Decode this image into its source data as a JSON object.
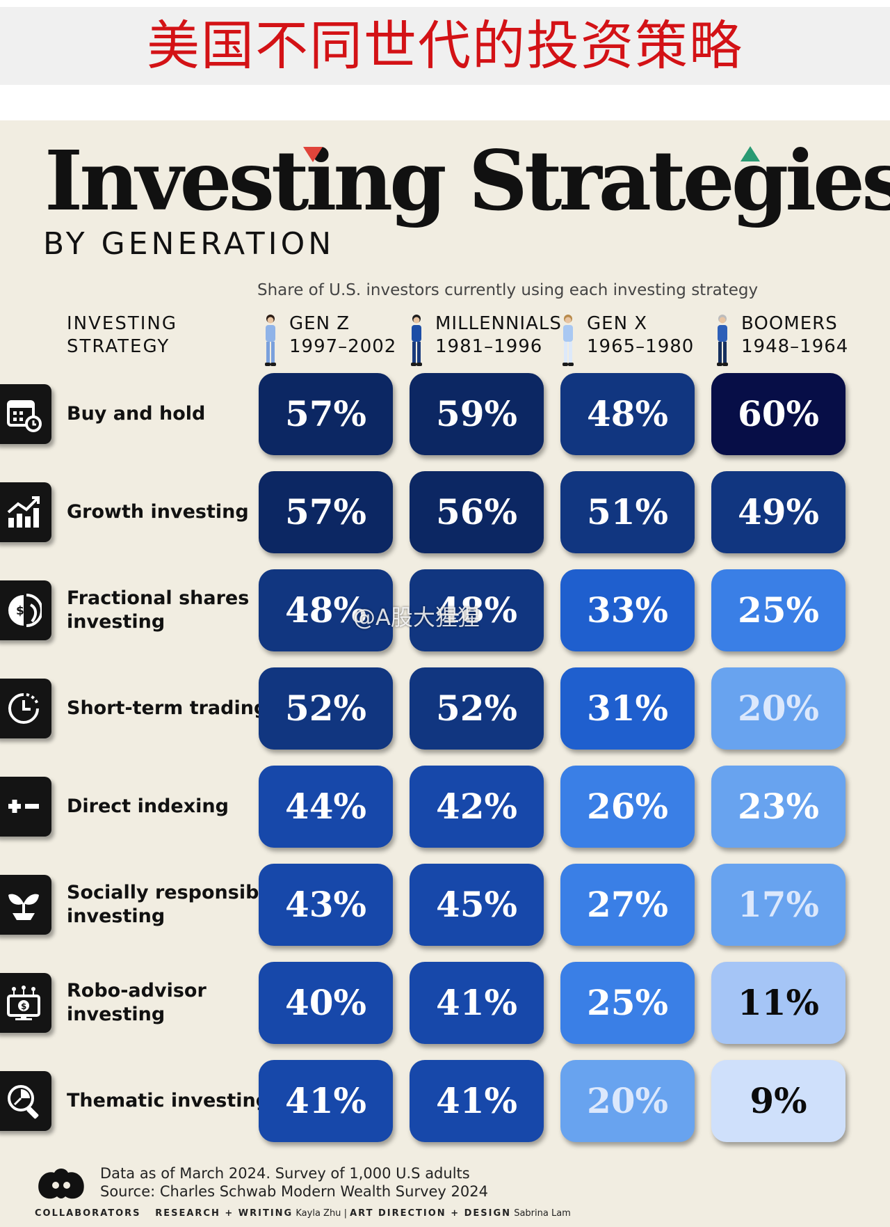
{
  "banner": {
    "title": "美国不同世代的投资策略"
  },
  "header": {
    "title": "Investing Strategies",
    "subtitle": "BY GENERATION"
  },
  "chart_data": {
    "type": "table",
    "title": "Investing Strategies",
    "subtitle": "BY GENERATION",
    "description": "Share of U.S. investors currently using each investing strategy",
    "strategy_header_line1": "INVESTING",
    "strategy_header_line2": "STRATEGY",
    "generations": [
      {
        "name": "GEN Z",
        "years": "1997–2002"
      },
      {
        "name": "MILLENNIALS",
        "years": "1981–1996"
      },
      {
        "name": "GEN X",
        "years": "1965–1980"
      },
      {
        "name": "BOOMERS",
        "years": "1948–1964"
      }
    ],
    "strategies": [
      {
        "label_lines": [
          "Buy and hold"
        ],
        "icon": "calendar-clock-icon",
        "values": [
          57,
          59,
          48,
          60
        ],
        "labels": [
          "57%",
          "59%",
          "48%",
          "60%"
        ]
      },
      {
        "label_lines": [
          "Growth investing"
        ],
        "icon": "growth-chart-icon",
        "values": [
          57,
          56,
          51,
          49
        ],
        "labels": [
          "57%",
          "56%",
          "51%",
          "49%"
        ]
      },
      {
        "label_lines": [
          "Fractional shares",
          "investing"
        ],
        "icon": "fractional-coin-icon",
        "values": [
          48,
          48,
          33,
          25
        ],
        "labels": [
          "48%",
          "48%",
          "33%",
          "25%"
        ]
      },
      {
        "label_lines": [
          "Short-term trading"
        ],
        "icon": "clock-icon",
        "values": [
          52,
          52,
          31,
          20
        ],
        "labels": [
          "52%",
          "52%",
          "31%",
          "20%"
        ]
      },
      {
        "label_lines": [
          "Direct indexing"
        ],
        "icon": "plus-minus-icon",
        "values": [
          44,
          42,
          26,
          23
        ],
        "labels": [
          "44%",
          "42%",
          "26%",
          "23%"
        ]
      },
      {
        "label_lines": [
          "Socially responsible",
          "investing"
        ],
        "icon": "sprout-icon",
        "values": [
          43,
          45,
          27,
          17
        ],
        "labels": [
          "43%",
          "45%",
          "27%",
          "17%"
        ]
      },
      {
        "label_lines": [
          "Robo-advisor",
          "investing"
        ],
        "icon": "robo-monitor-icon",
        "values": [
          40,
          41,
          25,
          11
        ],
        "labels": [
          "40%",
          "41%",
          "25%",
          "11%"
        ]
      },
      {
        "label_lines": [
          "Thematic investing"
        ],
        "icon": "magnifier-chart-icon",
        "values": [
          41,
          41,
          20,
          9
        ],
        "labels": [
          "41%",
          "41%",
          "20%",
          "9%"
        ]
      }
    ],
    "value_range": [
      0,
      60
    ],
    "color_scale": [
      "#cfe0fb",
      "#a5c5f6",
      "#68a3ef",
      "#3a7fe6",
      "#1f5fce",
      "#1748aa",
      "#113680",
      "#0c2763",
      "#070e47"
    ]
  },
  "footer": {
    "data_note": "Data as of March 2024. Survey of 1,000 U.S adults",
    "source": "Source: Charles Schwab Modern Wealth Survey 2024",
    "brand": "COLLABORATORS",
    "research_label": "RESEARCH + WRITING",
    "research_name": "Kayla Zhu",
    "separator": "|",
    "design_label": "ART DIRECTION + DESIGN",
    "design_name": "Sabrina Lam"
  },
  "watermark": {
    "text": "@A股大猩猩"
  }
}
